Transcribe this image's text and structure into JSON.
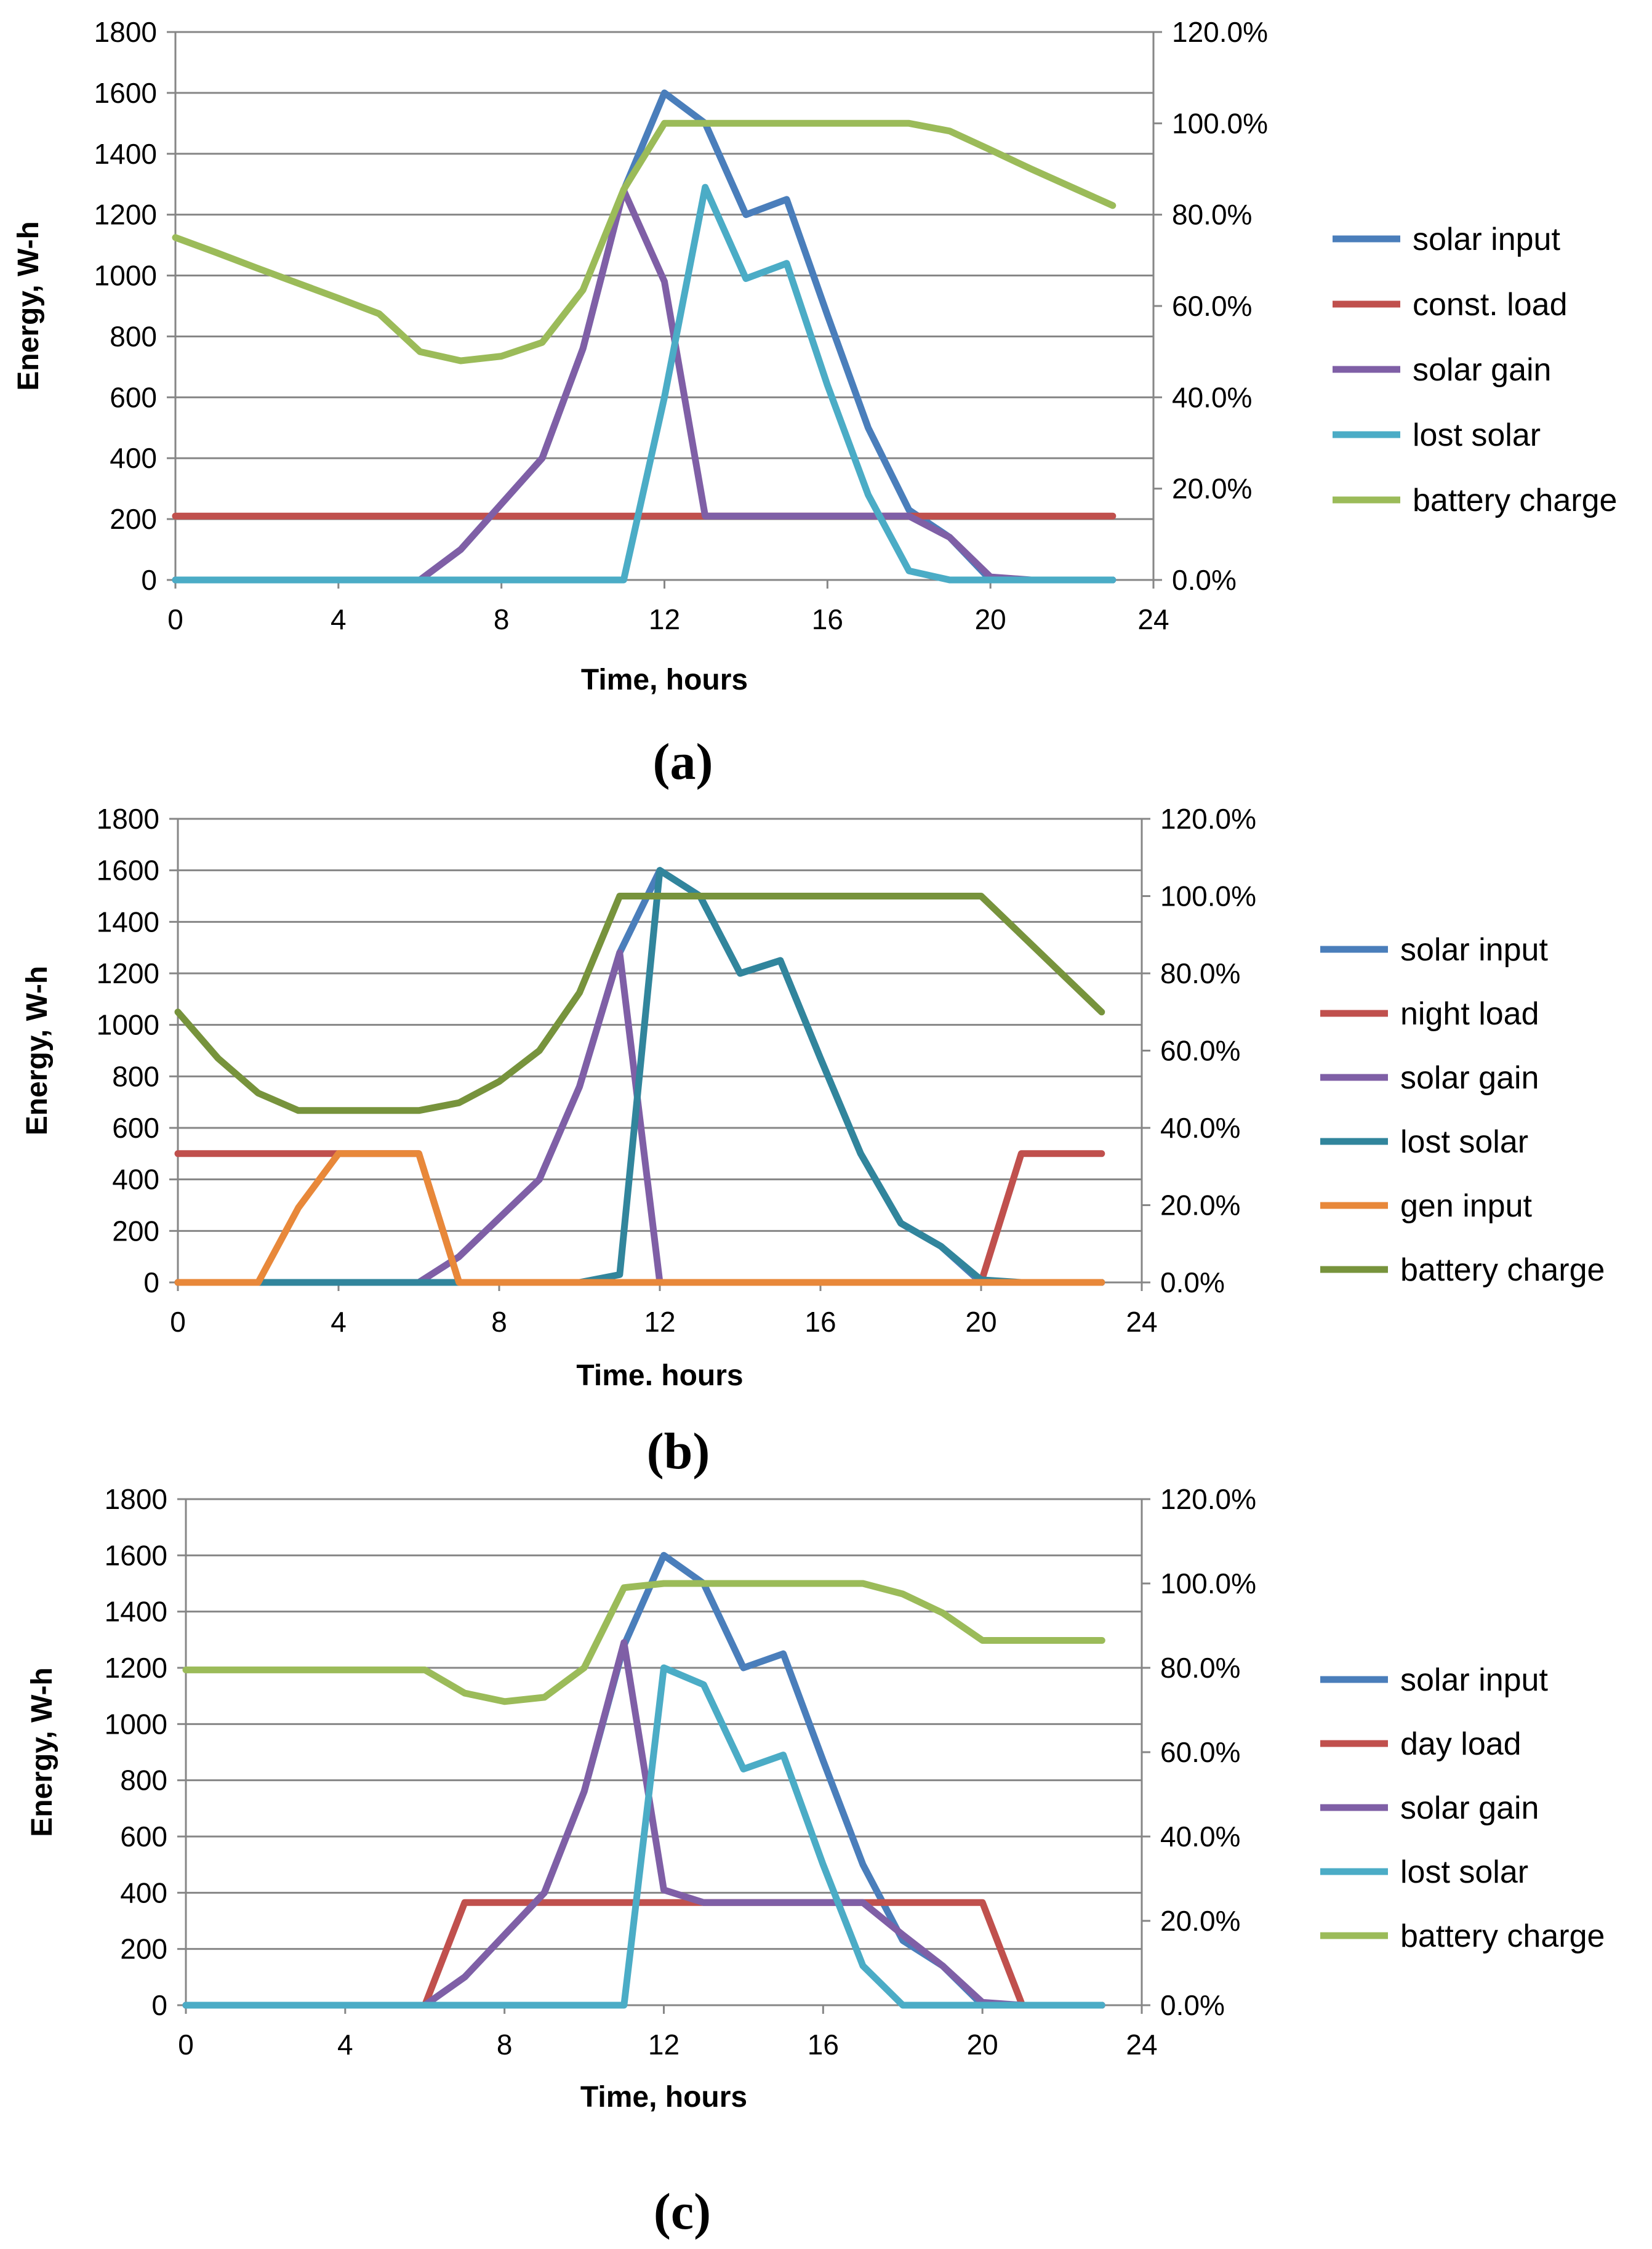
{
  "colors": {
    "solar_input": "#4a7ebb",
    "load": "#c0504d",
    "solar_gain": "#7f5fa6",
    "lost_solar_a": "#4bacc6",
    "lost_solar_b": "#31859c",
    "gen_input": "#e8883a",
    "battery_charge_a": "#9bbb59",
    "battery_charge_b": "#77933c",
    "grid": "#868686",
    "axis": "#868686"
  },
  "chart_data": [
    {
      "panel": "(a)",
      "type": "line",
      "xlabel": "Time, hours",
      "ylabel": "Energy, W-h",
      "xlim": [
        0,
        24
      ],
      "ylim": [
        0,
        1800
      ],
      "y2lim": [
        0,
        120
      ],
      "x_ticks": [
        "0",
        "4",
        "8",
        "12",
        "16",
        "20",
        "24"
      ],
      "y_ticks": [
        "0",
        "200",
        "400",
        "600",
        "800",
        "1000",
        "1200",
        "1400",
        "1600",
        "1800"
      ],
      "y2_ticks": [
        "0.0%",
        "20.0%",
        "40.0%",
        "60.0%",
        "80.0%",
        "100.0%",
        "120.0%"
      ],
      "x": [
        0,
        1,
        2,
        3,
        4,
        5,
        6,
        7,
        8,
        9,
        10,
        11,
        12,
        13,
        14,
        15,
        16,
        17,
        18,
        19,
        20,
        21,
        22,
        23
      ],
      "series": [
        {
          "name": "solar input",
          "color_key": "solar_input",
          "axis": "left",
          "values": [
            0,
            0,
            0,
            0,
            0,
            0,
            0,
            100,
            250,
            400,
            760,
            1280,
            1600,
            1500,
            1200,
            1250,
            870,
            500,
            230,
            140,
            0,
            0,
            0,
            0
          ]
        },
        {
          "name": "const. load",
          "color_key": "load",
          "axis": "left",
          "values": [
            210,
            210,
            210,
            210,
            210,
            210,
            210,
            210,
            210,
            210,
            210,
            210,
            210,
            210,
            210,
            210,
            210,
            210,
            210,
            210,
            210,
            210,
            210,
            210
          ]
        },
        {
          "name": "solar gain",
          "color_key": "solar_gain",
          "axis": "left",
          "values": [
            0,
            0,
            0,
            0,
            0,
            0,
            0,
            100,
            250,
            400,
            760,
            1280,
            980,
            210,
            210,
            210,
            210,
            210,
            210,
            140,
            10,
            0,
            0,
            0
          ]
        },
        {
          "name": "lost solar",
          "color_key": "lost_solar_a",
          "axis": "left",
          "values": [
            0,
            0,
            0,
            0,
            0,
            0,
            0,
            0,
            0,
            0,
            0,
            0,
            600,
            1290,
            990,
            1040,
            640,
            280,
            30,
            0,
            0,
            0,
            0,
            0
          ]
        },
        {
          "name": "battery charge",
          "color_key": "battery_charge_a",
          "axis": "right",
          "values": [
            75,
            71.7,
            68.3,
            65,
            61.7,
            58.3,
            50,
            48,
            49,
            52,
            63.5,
            85.5,
            100,
            100,
            100,
            100,
            100,
            100,
            100,
            98.3,
            94.2,
            90,
            86,
            82
          ]
        }
      ]
    },
    {
      "panel": "(b)",
      "type": "line",
      "xlabel": "Time. hours",
      "ylabel": "Energy, W-h",
      "xlim": [
        0,
        24
      ],
      "ylim": [
        0,
        1800
      ],
      "y2lim": [
        0,
        120
      ],
      "x_ticks": [
        "0",
        "4",
        "8",
        "12",
        "16",
        "20",
        "24"
      ],
      "y_ticks": [
        "0",
        "200",
        "400",
        "600",
        "800",
        "1000",
        "1200",
        "1400",
        "1600",
        "1800"
      ],
      "y2_ticks": [
        "0.0%",
        "20.0%",
        "40.0%",
        "60.0%",
        "80.0%",
        "100.0%",
        "120.0%"
      ],
      "x": [
        0,
        1,
        2,
        3,
        4,
        5,
        6,
        7,
        8,
        9,
        10,
        11,
        12,
        13,
        14,
        15,
        16,
        17,
        18,
        19,
        20,
        21,
        22,
        23
      ],
      "series": [
        {
          "name": "solar input",
          "color_key": "solar_input",
          "axis": "left",
          "values": [
            0,
            0,
            0,
            0,
            0,
            0,
            0,
            100,
            250,
            400,
            760,
            1280,
            1600,
            1500,
            1200,
            1250,
            870,
            500,
            230,
            140,
            0,
            0,
            0,
            0
          ]
        },
        {
          "name": "night load",
          "color_key": "load",
          "axis": "left",
          "values": [
            500,
            500,
            500,
            500,
            500,
            500,
            500,
            0,
            0,
            0,
            0,
            0,
            0,
            0,
            0,
            0,
            0,
            0,
            0,
            0,
            0,
            500,
            500,
            500
          ]
        },
        {
          "name": "solar gain",
          "color_key": "solar_gain",
          "axis": "left",
          "values": [
            0,
            0,
            0,
            0,
            0,
            0,
            0,
            100,
            250,
            400,
            760,
            1280,
            0,
            0,
            0,
            0,
            0,
            0,
            0,
            0,
            0,
            0,
            0,
            0
          ]
        },
        {
          "name": "lost solar",
          "color_key": "lost_solar_b",
          "axis": "left",
          "values": [
            0,
            0,
            0,
            0,
            0,
            0,
            0,
            0,
            0,
            0,
            0,
            30,
            1600,
            1500,
            1200,
            1250,
            870,
            500,
            230,
            140,
            10,
            0,
            0,
            0
          ]
        },
        {
          "name": "gen input",
          "color_key": "gen_input",
          "axis": "left",
          "values": [
            0,
            0,
            0,
            290,
            500,
            500,
            500,
            0,
            0,
            0,
            0,
            0,
            0,
            0,
            0,
            0,
            0,
            0,
            0,
            0,
            0,
            0,
            0,
            0
          ]
        },
        {
          "name": "battery charge",
          "color_key": "battery_charge_b",
          "axis": "right",
          "values": [
            70,
            58,
            49,
            44.5,
            44.5,
            44.5,
            44.5,
            46.5,
            52,
            60,
            75,
            100,
            100,
            100,
            100,
            100,
            100,
            100,
            100,
            100,
            100,
            90,
            80,
            70
          ]
        }
      ]
    },
    {
      "panel": "(c)",
      "type": "line",
      "xlabel": "Time, hours",
      "ylabel": "Energy, W-h",
      "xlim": [
        0,
        24
      ],
      "ylim": [
        0,
        1800
      ],
      "y2lim": [
        0,
        120
      ],
      "x_ticks": [
        "0",
        "4",
        "8",
        "12",
        "16",
        "20",
        "24"
      ],
      "y_ticks": [
        "0",
        "200",
        "400",
        "600",
        "800",
        "1000",
        "1200",
        "1400",
        "1600",
        "1800"
      ],
      "y2_ticks": [
        "0.0%",
        "20.0%",
        "40.0%",
        "60.0%",
        "80.0%",
        "100.0%",
        "120.0%"
      ],
      "x": [
        0,
        1,
        2,
        3,
        4,
        5,
        6,
        7,
        8,
        9,
        10,
        11,
        12,
        13,
        14,
        15,
        16,
        17,
        18,
        19,
        20,
        21,
        22,
        23
      ],
      "series": [
        {
          "name": "solar input",
          "color_key": "solar_input",
          "axis": "left",
          "values": [
            0,
            0,
            0,
            0,
            0,
            0,
            0,
            100,
            250,
            400,
            760,
            1280,
            1600,
            1500,
            1200,
            1250,
            870,
            500,
            230,
            140,
            0,
            0,
            0,
            0
          ]
        },
        {
          "name": "day load",
          "color_key": "load",
          "axis": "left",
          "values": [
            0,
            0,
            0,
            0,
            0,
            0,
            0,
            365,
            365,
            365,
            365,
            365,
            365,
            365,
            365,
            365,
            365,
            365,
            365,
            365,
            365,
            0,
            0,
            0
          ]
        },
        {
          "name": "solar gain",
          "color_key": "solar_gain",
          "axis": "left",
          "values": [
            0,
            0,
            0,
            0,
            0,
            0,
            0,
            100,
            250,
            400,
            760,
            1290,
            410,
            365,
            365,
            365,
            365,
            365,
            250,
            140,
            10,
            0,
            0,
            0
          ]
        },
        {
          "name": "lost solar",
          "color_key": "lost_solar_a",
          "axis": "left",
          "values": [
            0,
            0,
            0,
            0,
            0,
            0,
            0,
            0,
            0,
            0,
            0,
            0,
            1200,
            1140,
            840,
            890,
            500,
            140,
            0,
            0,
            0,
            0,
            0,
            0
          ]
        },
        {
          "name": "battery charge",
          "color_key": "battery_charge_a",
          "axis": "right",
          "values": [
            79.5,
            79.5,
            79.5,
            79.5,
            79.5,
            79.5,
            79.5,
            74,
            72,
            73,
            80,
            99,
            100,
            100,
            100,
            100,
            100,
            100,
            97.5,
            93,
            86.5,
            86.5,
            86.5,
            86.5
          ]
        }
      ]
    }
  ]
}
